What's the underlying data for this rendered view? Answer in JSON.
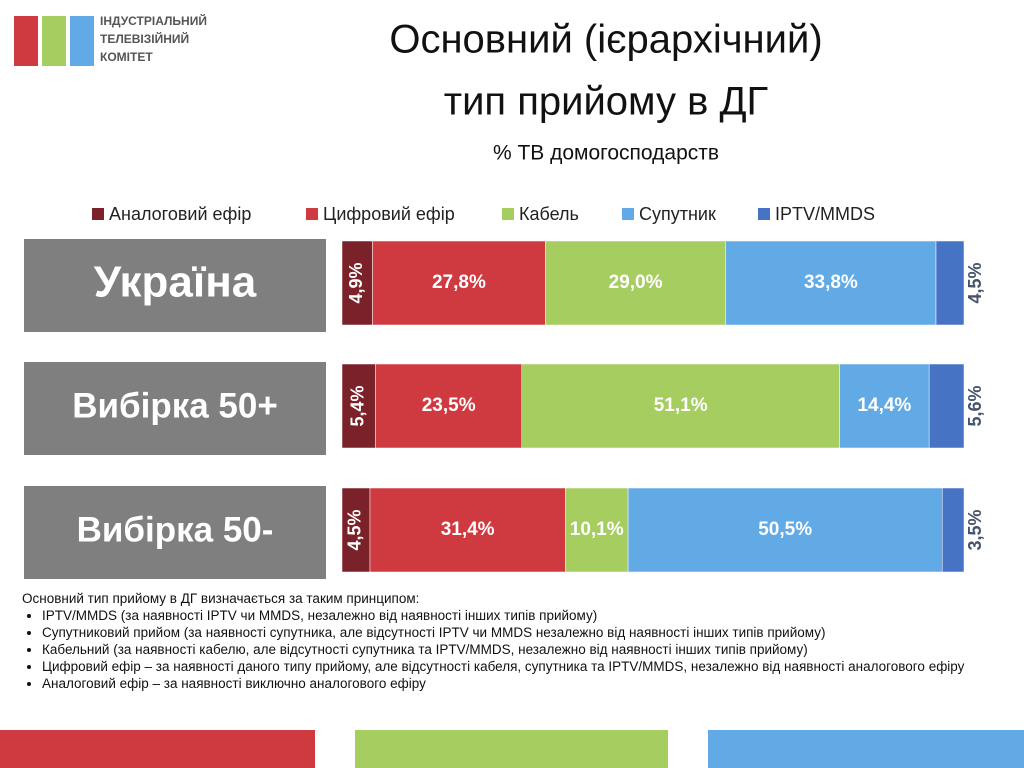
{
  "logo": [
    "ІНДУСТРІАЛЬНИЙ",
    "ТЕЛЕВІЗІЙНИЙ",
    "КОМІТЕТ"
  ],
  "chart_data": {
    "type": "bar",
    "orientation": "horizontal",
    "stacked": true,
    "title": [
      "Основний (ієрархічний)",
      "тип прийому в ДГ"
    ],
    "subtitle": "% ТВ домогосподарств",
    "categories": [
      "Україна",
      "Вибірка 50+",
      "Вибірка 50-"
    ],
    "xlim": [
      0,
      100
    ],
    "series": [
      {
        "name": "Аналоговий ефір",
        "color": "#7b2129",
        "values": [
          4.9,
          5.4,
          4.5
        ],
        "value_labels": [
          "4,9%",
          "5,4%",
          "4,5%"
        ]
      },
      {
        "name": "Цифровий ефір",
        "color": "#cf3a40",
        "values": [
          27.8,
          23.5,
          31.4
        ],
        "value_labels": [
          "27,8%",
          "23,5%",
          "31,4%"
        ]
      },
      {
        "name": "Кабель",
        "color": "#a6cd60",
        "values": [
          29.0,
          51.1,
          10.1
        ],
        "value_labels": [
          "29,0%",
          "51,1%",
          "10,1%"
        ]
      },
      {
        "name": "Супутник",
        "color": "#62aae6",
        "values": [
          33.8,
          14.4,
          50.5
        ],
        "value_labels": [
          "33,8%",
          "14,4%",
          "50,5%"
        ]
      },
      {
        "name": "IPTV/MMDS",
        "color": "#4673c4",
        "values": [
          4.5,
          5.6,
          3.5
        ],
        "value_labels": [
          "4,5%",
          "5,6%",
          "3,5%"
        ]
      }
    ]
  },
  "notes": {
    "heading": "Основний тип прийому в ДГ визначається за таким принципом:",
    "items": [
      "IPTV/MMDS (за наявності IPTV чи MMDS, незалежно від наявності інших типів прийому)",
      "Супутниковий прийом (за наявності супутника, але відсутності IPTV чи MMDS незалежно від наявності інших типів прийому)",
      "Кабельний (за наявності кабелю, але відсутності супутника та IPTV/MMDS, незалежно від наявності інших типів прийому)",
      "Цифровий ефір – за наявності даного типу прийому, але відсутності кабеля, супутника та IPTV/MMDS, незалежно від наявності аналогового ефіру",
      "Аналоговий ефір – за наявності виключно аналогового ефіру"
    ]
  }
}
